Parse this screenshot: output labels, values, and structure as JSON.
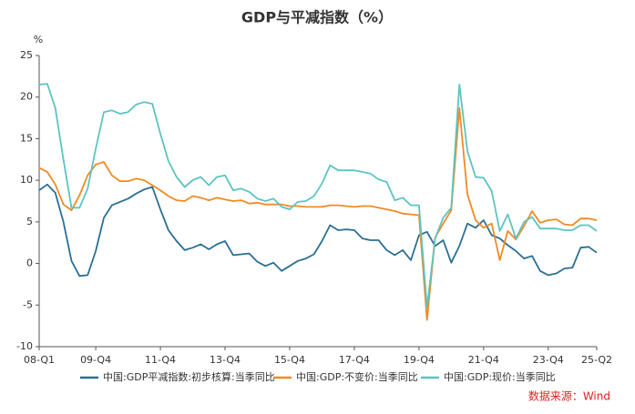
{
  "chart_data": {
    "type": "line",
    "title": "GDP与平减指数（%）",
    "y_unit": "%",
    "categories": [
      "08-Q1",
      null,
      null,
      null,
      null,
      null,
      null,
      "09-Q4",
      null,
      null,
      null,
      null,
      null,
      null,
      null,
      "11-Q4",
      null,
      null,
      null,
      null,
      null,
      null,
      null,
      "13-Q4",
      null,
      null,
      null,
      null,
      null,
      null,
      null,
      "15-Q4",
      null,
      null,
      null,
      null,
      null,
      null,
      null,
      "17-Q4",
      null,
      null,
      null,
      null,
      null,
      null,
      null,
      "19-Q4",
      null,
      null,
      null,
      null,
      null,
      null,
      null,
      "21-Q4",
      null,
      null,
      null,
      null,
      null,
      null,
      null,
      "23-Q4",
      null,
      null,
      null,
      null,
      null,
      "25-Q2"
    ],
    "series": [
      {
        "name": "中国:GDP平减指数:初步核算:当季同比",
        "color": "#2b6f94",
        "values": [
          8.8,
          9.5,
          8.5,
          5.0,
          0.3,
          -1.5,
          -1.4,
          1.5,
          5.5,
          7.0,
          7.4,
          7.8,
          8.4,
          8.9,
          9.2,
          6.5,
          4.0,
          2.7,
          1.6,
          1.9,
          2.3,
          1.7,
          2.3,
          2.7,
          1.0,
          1.1,
          1.2,
          0.2,
          -0.3,
          0.1,
          -0.9,
          -0.3,
          0.3,
          0.6,
          1.1,
          2.7,
          4.6,
          4.0,
          4.1,
          4.0,
          3.0,
          2.8,
          2.8,
          1.6,
          1.0,
          1.6,
          0.4,
          3.4,
          3.8,
          2.1,
          2.8,
          0.1,
          2.1,
          4.8,
          4.3,
          5.2,
          3.4,
          3.0,
          2.2,
          1.5,
          0.6,
          0.9,
          -0.9,
          -1.4,
          -1.2,
          -0.6,
          -0.5,
          1.9,
          2.0,
          1.3
        ]
      },
      {
        "name": "中国:GDP:不变价:当季同比",
        "color": "#f08a24",
        "values": [
          11.5,
          11.0,
          9.5,
          7.1,
          6.4,
          8.2,
          10.6,
          11.9,
          12.2,
          10.6,
          9.9,
          9.9,
          10.2,
          10.0,
          9.4,
          8.8,
          8.1,
          7.6,
          7.5,
          8.1,
          7.9,
          7.6,
          7.9,
          7.7,
          7.5,
          7.6,
          7.2,
          7.3,
          7.1,
          7.1,
          7.1,
          6.9,
          6.9,
          6.8,
          6.8,
          6.8,
          7.0,
          7.0,
          6.9,
          6.8,
          6.9,
          6.9,
          6.7,
          6.5,
          6.3,
          6.0,
          5.9,
          5.8,
          -6.8,
          3.1,
          4.8,
          6.4,
          18.7,
          8.3,
          5.2,
          4.3,
          4.8,
          0.4,
          3.9,
          2.9,
          4.5,
          6.3,
          4.9,
          5.2,
          5.3,
          4.7,
          4.6,
          5.4,
          5.4,
          5.2
        ]
      },
      {
        "name": "中国:GDP:现价:当季同比",
        "color": "#5cc4c0",
        "values": [
          21.5,
          21.6,
          18.7,
          12.5,
          6.7,
          6.7,
          9.0,
          13.8,
          18.2,
          18.4,
          18.0,
          18.2,
          19.1,
          19.4,
          19.2,
          15.6,
          12.3,
          10.4,
          9.2,
          10.0,
          10.4,
          9.4,
          10.4,
          10.6,
          8.8,
          9.0,
          8.6,
          7.8,
          7.5,
          7.8,
          6.8,
          6.5,
          7.4,
          7.5,
          8.1,
          9.6,
          11.8,
          11.2,
          11.2,
          11.2,
          11.0,
          10.8,
          10.1,
          9.8,
          7.6,
          7.9,
          7.0,
          7.0,
          -5.3,
          3.0,
          5.5,
          6.7,
          21.5,
          13.5,
          10.4,
          10.3,
          8.7,
          3.9,
          5.9,
          3.0,
          5.0,
          5.6,
          4.2,
          4.2,
          4.2,
          4.0,
          4.0,
          4.6,
          4.6,
          3.9
        ]
      }
    ],
    "ylim": [
      -10,
      25
    ],
    "yticks": [
      -10,
      -5,
      0,
      5,
      10,
      15,
      20,
      25
    ],
    "grid": false,
    "legend": "bottom",
    "source": "数据来源：Wind"
  }
}
